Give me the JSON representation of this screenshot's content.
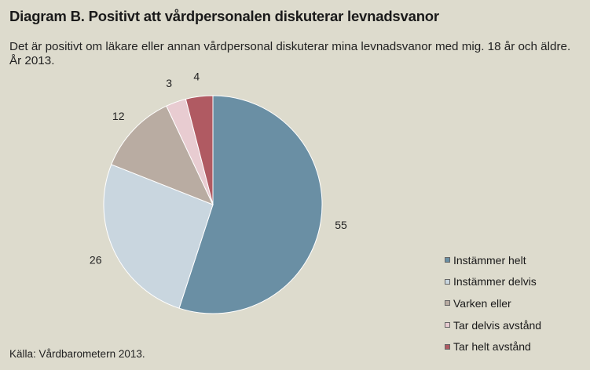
{
  "title": "Diagram B.  Positivt att vårdpersonalen diskuterar levnadsvanor",
  "subtitle": "Det är positivt om läkare eller annan vårdpersonal diskuterar mina levnadsvanor med mig. 18 år och äldre. År 2013.",
  "source": "Källa: Vårdbarometern 2013.",
  "chart_data": {
    "type": "pie",
    "categories": [
      "Instämmer helt",
      "Instämmer delvis",
      "Varken eller",
      "Tar delvis avstånd",
      "Tar helt avstånd"
    ],
    "values": [
      55,
      26,
      12,
      3,
      4
    ],
    "colors": [
      "#6a8fa4",
      "#c9d6df",
      "#b9aca2",
      "#e8ccd1",
      "#b05a62"
    ],
    "legend_position": "right",
    "start_angle": "12 o'clock",
    "direction": "clockwise"
  }
}
